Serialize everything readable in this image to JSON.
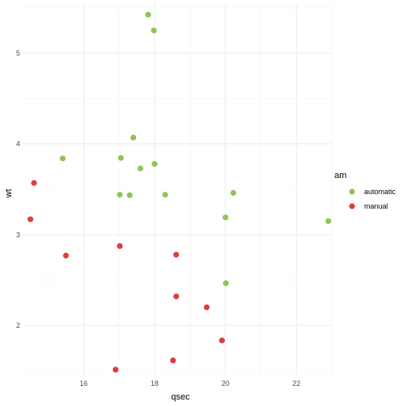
{
  "chart_data": {
    "type": "scatter",
    "xlabel": "qsec",
    "ylabel": "wt",
    "xlim": [
      14.3,
      23.0
    ],
    "ylim": [
      1.45,
      5.55
    ],
    "x_ticks": [
      16,
      18,
      20,
      22
    ],
    "y_ticks": [
      2,
      3,
      4,
      5
    ],
    "grid": true,
    "legend": {
      "title": "am",
      "position": "right"
    },
    "series": [
      {
        "name": "automatic",
        "color": "#91c454",
        "points": [
          {
            "x": 17.82,
            "y": 5.424
          },
          {
            "x": 17.98,
            "y": 5.25
          },
          {
            "x": 17.4,
            "y": 4.07
          },
          {
            "x": 15.41,
            "y": 3.84
          },
          {
            "x": 17.05,
            "y": 3.845
          },
          {
            "x": 17.6,
            "y": 3.73
          },
          {
            "x": 18.0,
            "y": 3.78
          },
          {
            "x": 17.02,
            "y": 3.44
          },
          {
            "x": 17.3,
            "y": 3.435
          },
          {
            "x": 18.3,
            "y": 3.44
          },
          {
            "x": 20.22,
            "y": 3.46
          },
          {
            "x": 20.0,
            "y": 3.19
          },
          {
            "x": 22.9,
            "y": 3.15
          },
          {
            "x": 20.01,
            "y": 2.465
          }
        ]
      },
      {
        "name": "manual",
        "color": "#e03c3c",
        "points": [
          {
            "x": 14.6,
            "y": 3.57
          },
          {
            "x": 14.5,
            "y": 3.17
          },
          {
            "x": 17.02,
            "y": 2.875
          },
          {
            "x": 15.5,
            "y": 2.77
          },
          {
            "x": 18.61,
            "y": 2.78
          },
          {
            "x": 18.61,
            "y": 2.32
          },
          {
            "x": 19.47,
            "y": 2.2
          },
          {
            "x": 19.9,
            "y": 1.835
          },
          {
            "x": 18.52,
            "y": 1.615
          },
          {
            "x": 16.9,
            "y": 1.513
          }
        ]
      }
    ]
  }
}
